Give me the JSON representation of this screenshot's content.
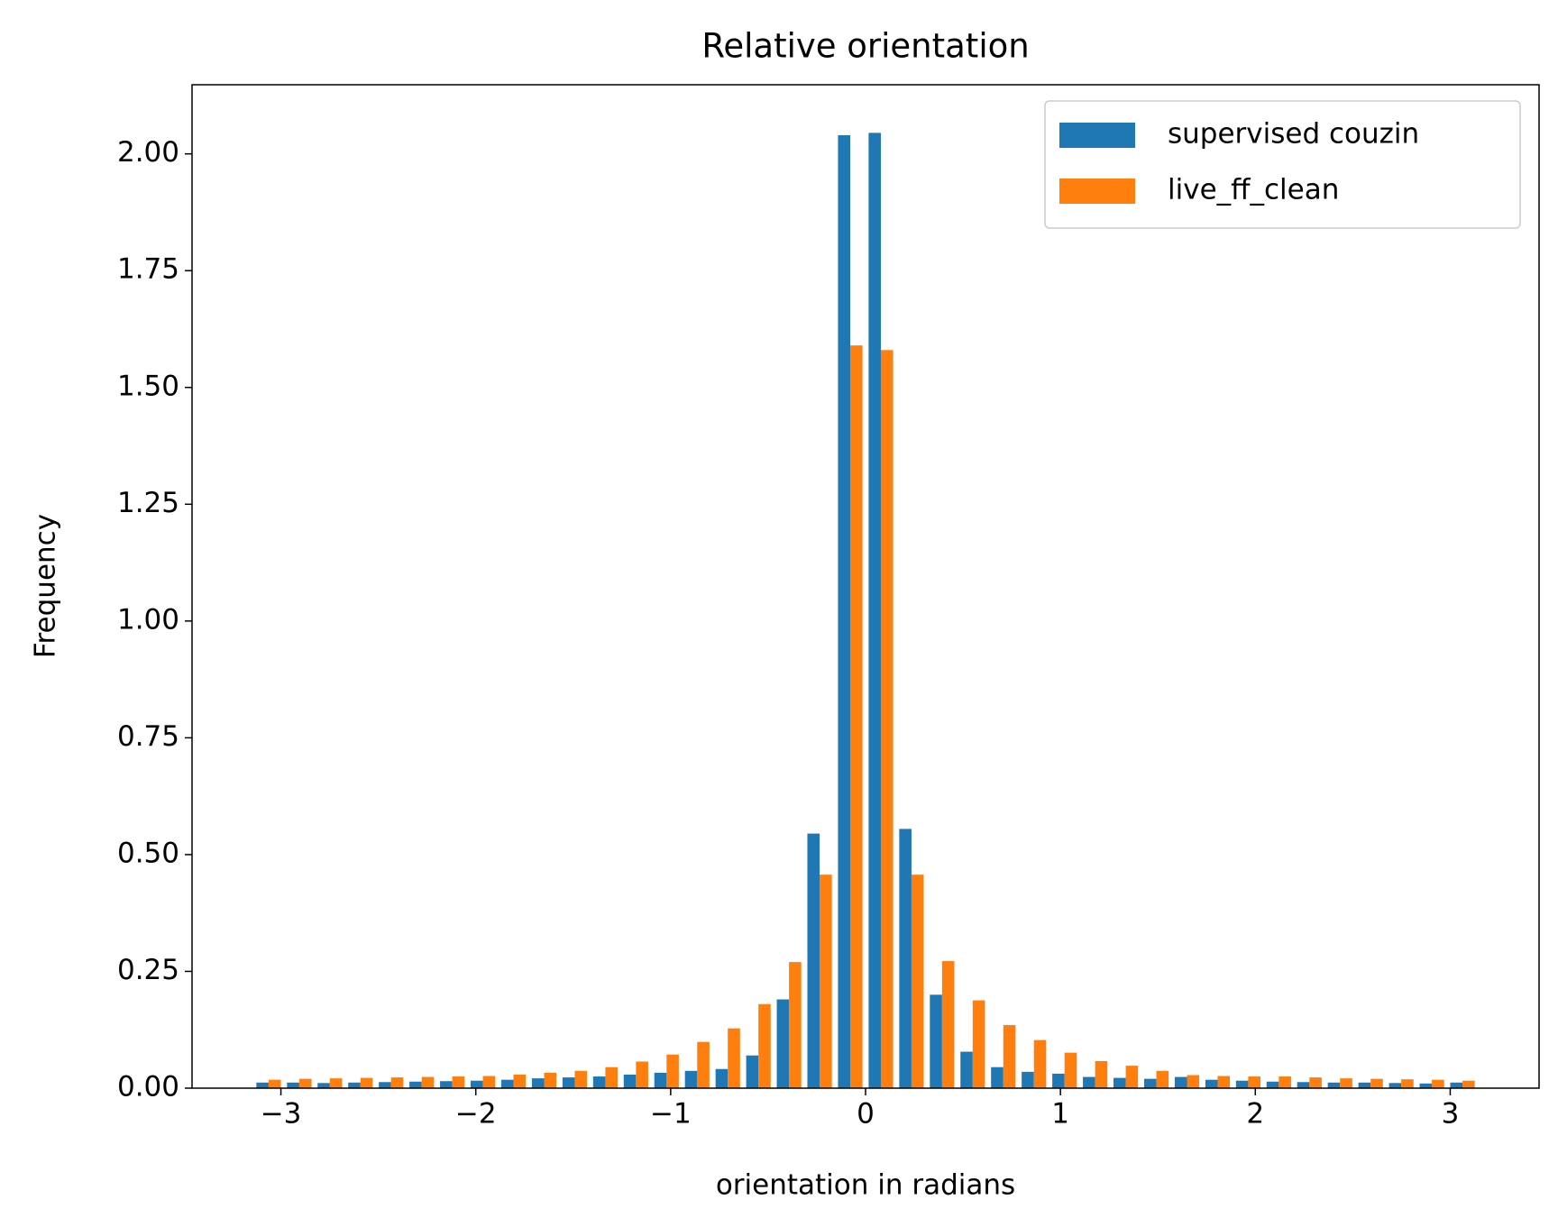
{
  "chart_data": {
    "type": "histogram",
    "title": "Relative orientation",
    "x_label": "orientation in radians",
    "y_label": "Frequency",
    "bins": [
      -3.1416,
      -2.9845,
      -2.8274,
      -2.6704,
      -2.5133,
      -2.3562,
      -2.1991,
      -2.042,
      -1.885,
      -1.7279,
      -1.5708,
      -1.4137,
      -1.2566,
      -1.0996,
      -0.9425,
      -0.7854,
      -0.6283,
      -0.4712,
      -0.3142,
      -0.1571,
      0,
      0.1571,
      0.3142,
      0.4712,
      0.6283,
      0.7854,
      0.9425,
      1.0996,
      1.2566,
      1.4137,
      1.5708,
      1.7279,
      1.885,
      2.042,
      2.1991,
      2.3562,
      2.5133,
      2.6704,
      2.8274,
      2.9845,
      3.1416
    ],
    "series": [
      {
        "name": "supervised couzin",
        "color": "#1f77b4",
        "values": [
          0.012,
          0.012,
          0.011,
          0.012,
          0.013,
          0.014,
          0.015,
          0.016,
          0.018,
          0.021,
          0.023,
          0.025,
          0.029,
          0.033,
          0.037,
          0.041,
          0.07,
          0.19,
          0.545,
          2.04,
          2.045,
          0.555,
          0.2,
          0.078,
          0.045,
          0.035,
          0.031,
          0.024,
          0.022,
          0.02,
          0.024,
          0.018,
          0.016,
          0.014,
          0.013,
          0.012,
          0.012,
          0.011,
          0.01,
          0.012
        ]
      },
      {
        "name": "live_ff_clean",
        "color": "#ff7f0e",
        "values": [
          0.018,
          0.02,
          0.021,
          0.022,
          0.023,
          0.024,
          0.025,
          0.026,
          0.029,
          0.033,
          0.037,
          0.045,
          0.057,
          0.072,
          0.099,
          0.128,
          0.18,
          0.27,
          0.457,
          1.59,
          1.58,
          0.457,
          0.272,
          0.188,
          0.135,
          0.103,
          0.076,
          0.058,
          0.048,
          0.037,
          0.028,
          0.026,
          0.025,
          0.025,
          0.023,
          0.021,
          0.02,
          0.019,
          0.018,
          0.016
        ]
      }
    ],
    "xlim": [
      -3.456,
      3.456
    ],
    "ylim": [
      0,
      2.148
    ],
    "xticks": [
      {
        "value": -3,
        "label": "−3"
      },
      {
        "value": -2,
        "label": "−2"
      },
      {
        "value": -1,
        "label": "−1"
      },
      0,
      1,
      2,
      3
    ],
    "yticks": [
      {
        "value": 0,
        "label": "0.00"
      },
      {
        "value": 0.25,
        "label": "0.25"
      },
      {
        "value": 0.5,
        "label": "0.50"
      },
      {
        "value": 0.75,
        "label": "0.75"
      },
      {
        "value": 1,
        "label": "1.00"
      },
      {
        "value": 1.25,
        "label": "1.25"
      },
      {
        "value": 1.5,
        "label": "1.50"
      },
      {
        "value": 1.75,
        "label": "1.75"
      },
      {
        "value": 2,
        "label": "2.00"
      }
    ],
    "legend": "upper right",
    "grid": false
  }
}
